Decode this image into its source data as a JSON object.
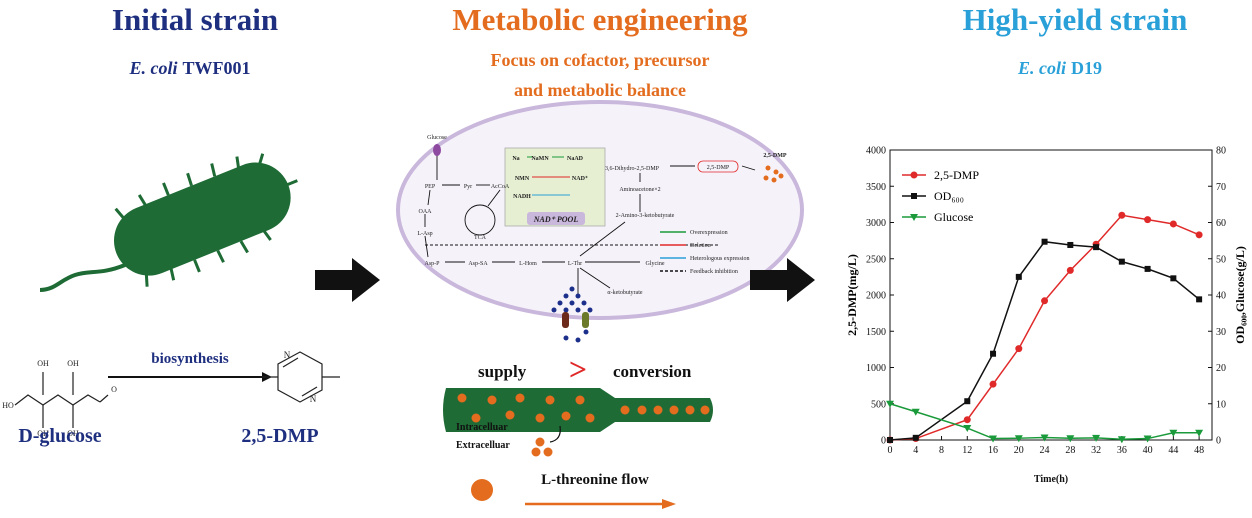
{
  "left": {
    "title": "Initial strain",
    "subtitle": {
      "species": "E. coli",
      "strain": "TWF001"
    },
    "reaction": "biosynthesis",
    "substrate": "D-glucose",
    "product": "2,5-DMP",
    "glucose_atoms": [
      "OH",
      "OH",
      "HO",
      "OH",
      "OH",
      "O"
    ],
    "pyrazine_atoms": [
      "N",
      "N"
    ]
  },
  "middle": {
    "title": "Metabolic engineering",
    "subtitle_lines": [
      "Focus on cofactor, precursor",
      "and metabolic balance"
    ],
    "pathway_nodes": [
      "Glucose",
      "PEP",
      "Pyr",
      "AcCoA",
      "OAA",
      "L-Asp",
      "TCA",
      "Asp-P",
      "Asp-SA",
      "L-Hom",
      "L-Thr",
      "Glycine",
      "α-ketobutyrate",
      "2-Amino-3-ketobutyrate",
      "Aminoacetone×2",
      "3,6-Dihydro-2,5-DMP",
      "2,5-DMP",
      "2,5-DMP"
    ],
    "nad_pool": {
      "label": "NAD⁺ POOL",
      "nodes": [
        "Na",
        "NaMN",
        "NaAD",
        "NMN",
        "NAD⁺",
        "NADH"
      ]
    },
    "legend": [
      "Overexpression",
      "Deletion",
      "Heterologous expression",
      "Feedback inhibition"
    ],
    "supply": "supply",
    "relation": ">",
    "conversion": "conversion",
    "inside": "Intracelluar",
    "outside": "Extracelluar",
    "flow": "L-threonine flow"
  },
  "right": {
    "title": "High-yield strain",
    "subtitle": {
      "species": "E. coli",
      "strain": "D19"
    }
  },
  "chart_data": {
    "type": "line",
    "x_label": "Time(h)",
    "y_label": "2,5-DMP(mg/L)",
    "y2_label": "OD₆₀₀,Glucose(g/L)",
    "x": [
      0,
      4,
      12,
      16,
      20,
      24,
      28,
      32,
      36,
      40,
      44,
      48
    ],
    "xlim": [
      0,
      50
    ],
    "xticks": [
      0,
      4,
      8,
      12,
      16,
      20,
      24,
      28,
      32,
      36,
      40,
      44,
      48
    ],
    "ylim": [
      0,
      4000
    ],
    "yticks": [
      0,
      500,
      1000,
      1500,
      2000,
      2500,
      3000,
      3500,
      4000
    ],
    "y2lim": [
      0,
      80
    ],
    "y2ticks": [
      0,
      10,
      20,
      30,
      40,
      50,
      60,
      70,
      80
    ],
    "legend": "upper left",
    "series": [
      {
        "name": "2,5-DMP",
        "color": "#e02a2a",
        "marker": "circle",
        "values": [
          0,
          20,
          280,
          770,
          1260,
          1920,
          2340,
          2700,
          3100,
          3040,
          2980,
          2830
        ]
      },
      {
        "name": "OD₆₀₀",
        "color": "#111111",
        "marker": "square",
        "axis": "y2",
        "values": [
          0,
          0.6,
          10.7,
          23.8,
          45,
          54.7,
          53.8,
          53.2,
          49.2,
          47.2,
          44.6,
          38.8
        ]
      },
      {
        "name": "Glucose",
        "color": "#1a9a3a",
        "marker": "triangle-down",
        "axis": "y2",
        "values": [
          10,
          7.8,
          3.3,
          0.4,
          0.5,
          0.7,
          0.5,
          0.6,
          0.2,
          0.4,
          2.0,
          2.0
        ]
      }
    ]
  }
}
